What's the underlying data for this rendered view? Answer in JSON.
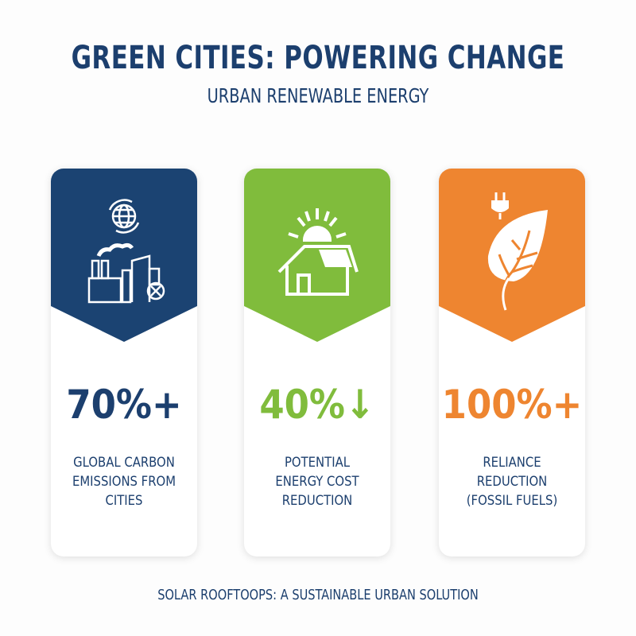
{
  "header": {
    "title": "GREEN CITIES: POWERING CHANGE",
    "subtitle": "URBAN RENEWABLE ENERGY"
  },
  "cards": [
    {
      "icon": "city-emissions-globe-icon",
      "color": "#1b4372",
      "value": "70%+",
      "label": "GLOBAL CARBON\nEMISSIONS FROM\nCITIES"
    },
    {
      "icon": "solar-house-icon",
      "color": "#80bc3c",
      "value": "40%↓",
      "label": "POTENTIAL\nENERGY COST\nREDUCTION"
    },
    {
      "icon": "leaf-plug-icon",
      "color": "#ee8530",
      "value": "100%+",
      "label": "RELIANCE REDUCTION\n(FOSSIL FUELS)"
    }
  ],
  "footer": "SOLAR ROOFTOOPS: A SUSTAINABLE URBAN SOLUTION"
}
